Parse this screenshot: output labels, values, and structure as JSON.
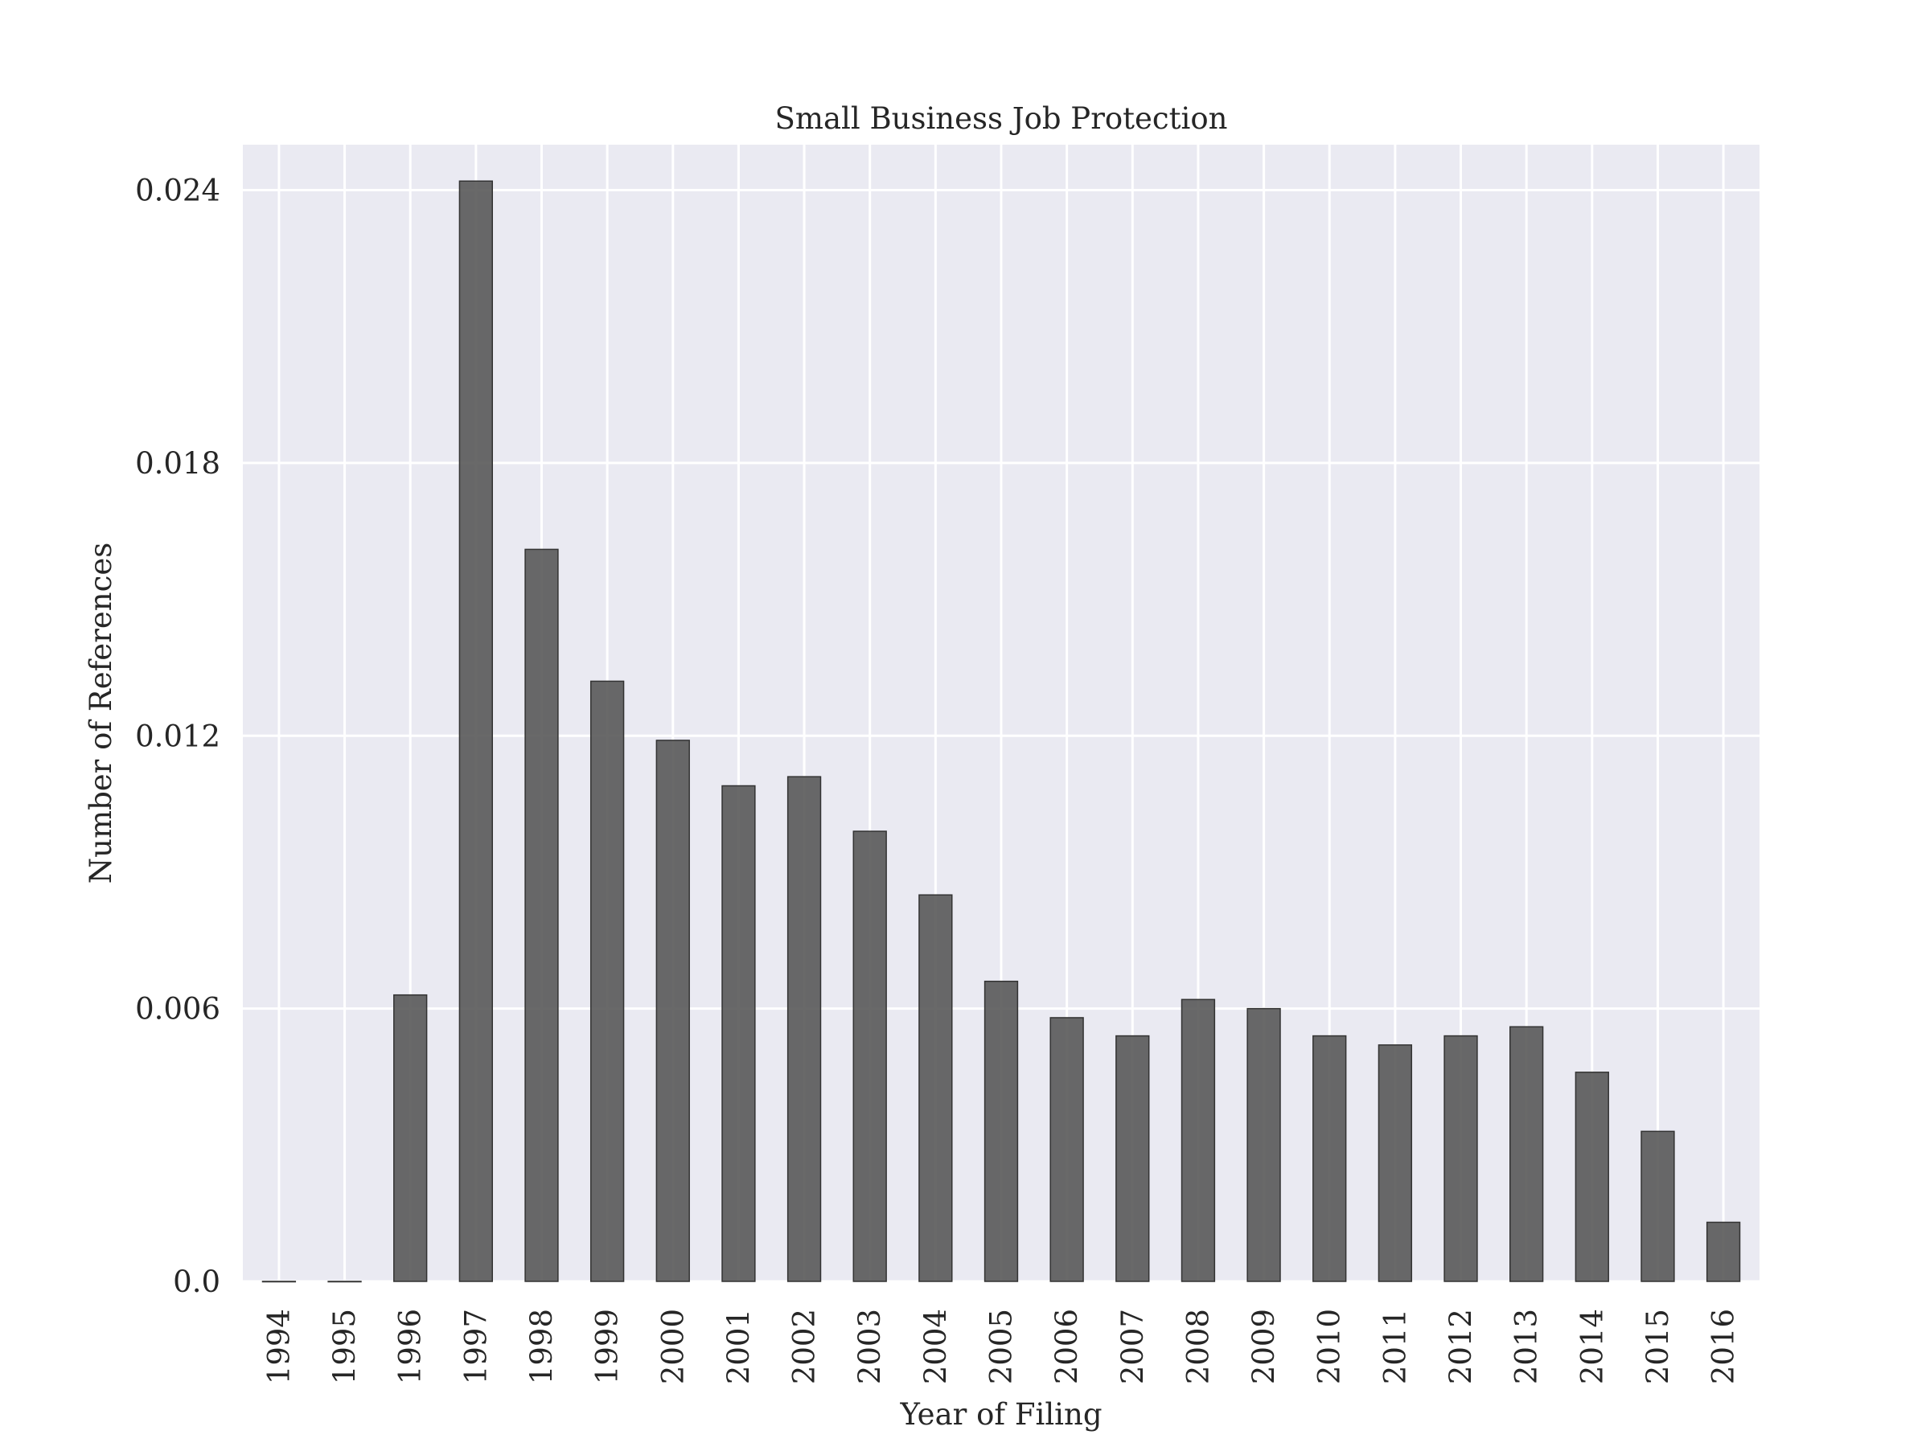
{
  "chart_data": {
    "type": "bar",
    "title": "Small Business Job Protection",
    "xlabel": "Year of Filing",
    "ylabel": "Number of References",
    "categories": [
      "1994",
      "1995",
      "1996",
      "1997",
      "1998",
      "1999",
      "2000",
      "2001",
      "2002",
      "2003",
      "2004",
      "2005",
      "2006",
      "2007",
      "2008",
      "2009",
      "2010",
      "2011",
      "2012",
      "2013",
      "2014",
      "2015",
      "2016"
    ],
    "values": [
      0.0,
      0.0,
      0.0063,
      0.0242,
      0.0161,
      0.0132,
      0.0119,
      0.0109,
      0.0111,
      0.0099,
      0.0085,
      0.0066,
      0.0058,
      0.0054,
      0.0062,
      0.006,
      0.0054,
      0.0052,
      0.0054,
      0.0056,
      0.0046,
      0.0033,
      0.0013
    ],
    "yticks": [
      0.0,
      0.006,
      0.012,
      0.018,
      0.024
    ],
    "ytick_labels": [
      "0.0",
      "0.006",
      "0.012",
      "0.018",
      "0.024"
    ],
    "ylim": [
      0,
      0.025
    ],
    "grid": true,
    "colors": {
      "background": "#eaeaf2",
      "grid": "#ffffff",
      "bar": "#595959",
      "bar_edge": "#333333",
      "text": "#262626"
    }
  }
}
